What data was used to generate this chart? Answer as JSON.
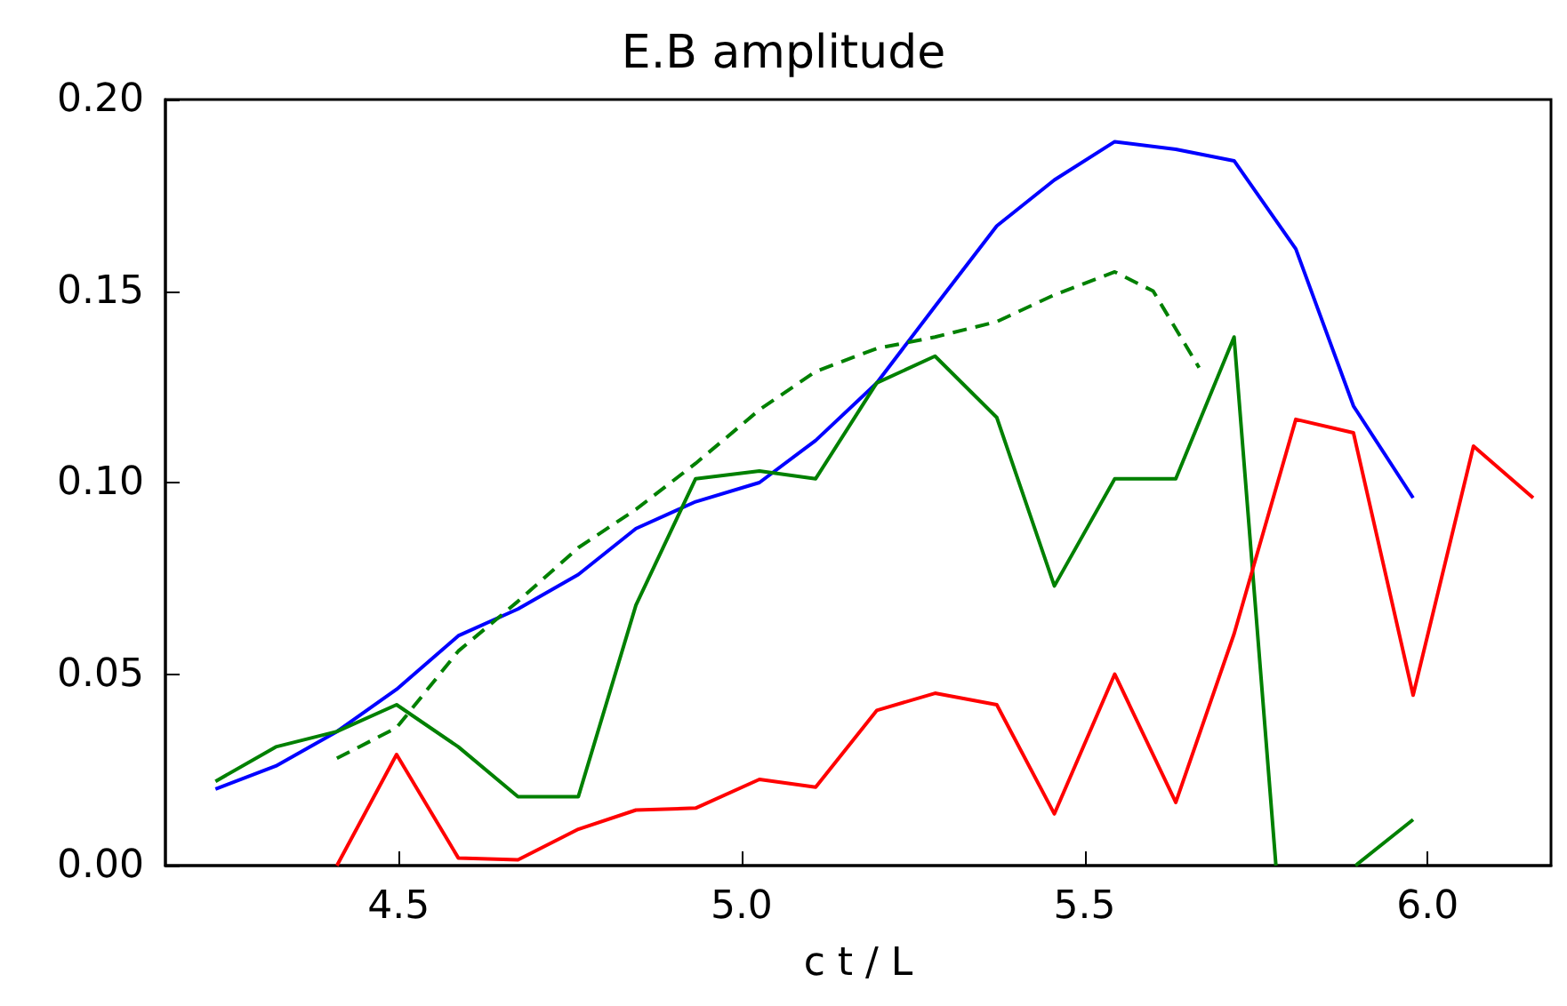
{
  "chart_data": {
    "type": "line",
    "title": "E.B amplitude",
    "xlabel": "c t / L",
    "xlim": [
      4.16,
      6.18
    ],
    "xticks": [
      4.5,
      {
        "value": 5,
        "label": "5.0"
      },
      5.5,
      {
        "value": 6,
        "label": "6.0"
      }
    ],
    "ylim": [
      0,
      0.2
    ],
    "yticks": [
      {
        "value": 0,
        "label": "0.00"
      },
      {
        "value": 0.05,
        "label": "0.05"
      },
      {
        "value": 0.1,
        "label": "0.10"
      },
      {
        "value": 0.15,
        "label": "0.15"
      },
      {
        "value": 0.2,
        "label": "0.20"
      }
    ],
    "grid": false,
    "marker": "none",
    "series": [
      {
        "color": "#0000ff",
        "line_style": "solid",
        "x": [
          4.233,
          4.321,
          4.41,
          4.497,
          4.587,
          4.674,
          4.762,
          4.846,
          4.933,
          5.026,
          5.108,
          5.197,
          5.282,
          5.372,
          5.456,
          5.544,
          5.633,
          5.718,
          5.808,
          5.892,
          5.979
        ],
        "values": [
          0.02,
          0.026,
          0.035,
          0.046,
          0.06,
          0.067,
          0.076,
          0.088,
          0.095,
          0.1,
          0.111,
          0.126,
          0.146,
          0.167,
          0.179,
          0.189,
          0.187,
          0.184,
          0.161,
          0.12,
          0.096
        ]
      },
      {
        "color": "#008000",
        "line_style": "solid",
        "x": [
          4.233,
          4.321,
          4.41,
          4.497,
          4.587,
          4.674,
          4.762,
          4.846,
          4.933,
          5.026,
          5.108,
          5.197,
          5.282,
          5.372,
          5.456,
          5.544,
          5.633,
          5.718,
          5.779,
          5.85,
          5.895,
          5.979
        ],
        "values": [
          0.022,
          0.031,
          0.035,
          0.042,
          0.031,
          0.018,
          0.018,
          0.068,
          0.101,
          0.103,
          0.101,
          0.126,
          0.133,
          0.117,
          0.073,
          0.101,
          0.101,
          0.138,
          0,
          null,
          0,
          0.012
        ]
      },
      {
        "color": "#008000",
        "line_style": "dashed",
        "x": [
          4.41,
          4.497,
          4.587,
          4.674,
          4.762,
          4.846,
          4.933,
          5.026,
          5.108,
          5.197,
          5.282,
          5.372,
          5.456,
          5.544,
          5.6,
          5.667
        ],
        "values": [
          0.028,
          0.036,
          0.056,
          0.069,
          0.083,
          0.093,
          0.105,
          0.119,
          0.129,
          0.135,
          0.138,
          0.142,
          0.149,
          0.155,
          0.15,
          0.13
        ]
      },
      {
        "color": "#ff0000",
        "line_style": "solid",
        "x": [
          4.41,
          4.497,
          4.587,
          4.674,
          4.762,
          4.846,
          4.933,
          5.026,
          5.108,
          5.197,
          5.282,
          5.372,
          5.456,
          5.544,
          5.633,
          5.718,
          5.808,
          5.892,
          5.979,
          6.067,
          6.154
        ],
        "values": [
          0,
          0.029,
          0.002,
          0.0015,
          0.0095,
          0.0145,
          0.015,
          0.0225,
          0.0205,
          0.0405,
          0.045,
          0.042,
          0.0135,
          0.05,
          0.0165,
          0.0605,
          0.1165,
          0.113,
          0.0445,
          0.1095,
          0.096
        ]
      }
    ]
  }
}
